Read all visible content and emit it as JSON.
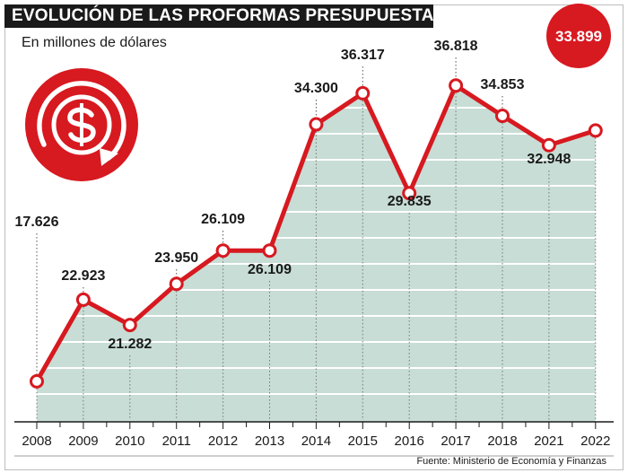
{
  "header": {
    "title": "EVOLUCIÓN DE LAS PROFORMAS PRESUPUESTARIAS",
    "subtitle": "En millones de dólares",
    "badge_value": "33.899",
    "source": "Fuente: Ministerio de Economía y Finanzas"
  },
  "icon": "dollar-cycle-icon",
  "colors": {
    "line": "#d71920",
    "area": "#c7ddd5",
    "header_bg": "#1a1a1a",
    "badge": "#d71920"
  },
  "chart_data": {
    "type": "area",
    "title": "EVOLUCIÓN DE LAS PROFORMAS PRESUPUESTARIAS",
    "subtitle": "En millones de dólares",
    "categories": [
      "2008",
      "2009",
      "2010",
      "2011",
      "2012",
      "2013",
      "2014",
      "2015",
      "2016",
      "2017",
      "2018",
      "2021",
      "2022"
    ],
    "series": [
      {
        "values": [
          17.626,
          22.923,
          21.282,
          23.95,
          26.109,
          26.109,
          34.3,
          36.317,
          29.835,
          36.818,
          34.853,
          32.948,
          33.899
        ]
      }
    ],
    "labels": [
      "17.626",
      "22.923",
      "21.282",
      "23.950",
      "26.109",
      "26.109",
      "34.300",
      "36.317",
      "29.835",
      "36.818",
      "34.853",
      "32.948",
      "33.899"
    ],
    "ylim": [
      15,
      38
    ],
    "grid": "horizontal",
    "legend": "none"
  }
}
